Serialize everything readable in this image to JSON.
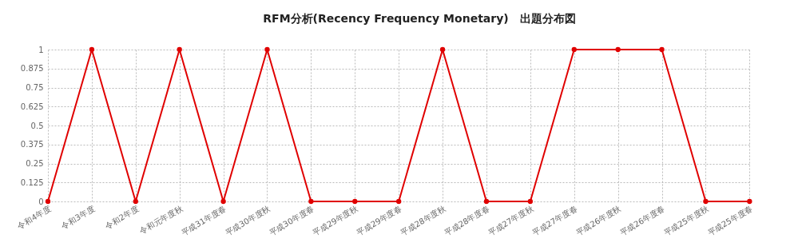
{
  "chart_data": {
    "type": "line",
    "title": "RFM分析(Recency Frequency Monetary)　出題分布図",
    "categories": [
      "令和4年度",
      "令和3年度",
      "令和2年度",
      "令和元年度秋",
      "平成31年度春",
      "平成30年度秋",
      "平成30年度春",
      "平成29年度秋",
      "平成29年度春",
      "平成28年度秋",
      "平成28年度春",
      "平成27年度秋",
      "平成27年度春",
      "平成26年度秋",
      "平成26年度春",
      "平成25年度秋",
      "平成25年度春"
    ],
    "series": [
      {
        "color": "#e00000",
        "values": [
          0,
          1,
          0,
          1,
          0,
          1,
          0,
          0,
          0,
          1,
          0,
          0,
          1,
          1,
          1,
          0,
          0
        ]
      }
    ],
    "ylim": [
      0,
      1
    ],
    "yticks": [
      0,
      0.125,
      0.25,
      0.375,
      0.5,
      0.625,
      0.75,
      0.875,
      1
    ],
    "grid": true,
    "marker": "circle",
    "line_style": "solid"
  }
}
